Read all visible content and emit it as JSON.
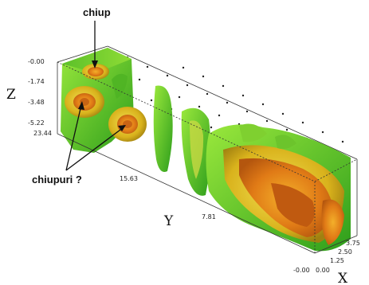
{
  "labels": {
    "chiup": "chiup",
    "chiupuri": "chiupuri ?"
  },
  "axes": {
    "z": {
      "title": "Z",
      "ticks": [
        "-0.00",
        "-1.74",
        "-3.48",
        "-5.22"
      ]
    },
    "y": {
      "title": "Y",
      "ticks": [
        "23.44",
        "15.63",
        "7.81",
        "-0.00"
      ]
    },
    "x": {
      "title": "X",
      "ticks": [
        "0.00",
        "1.25",
        "2.50",
        "3.75"
      ]
    }
  },
  "colors": {
    "green_dark": "#2e9e1c",
    "green_light": "#8fdc35",
    "yellow": "#d9c21c",
    "orange": "#e07a16",
    "box_edge": "#333333"
  }
}
